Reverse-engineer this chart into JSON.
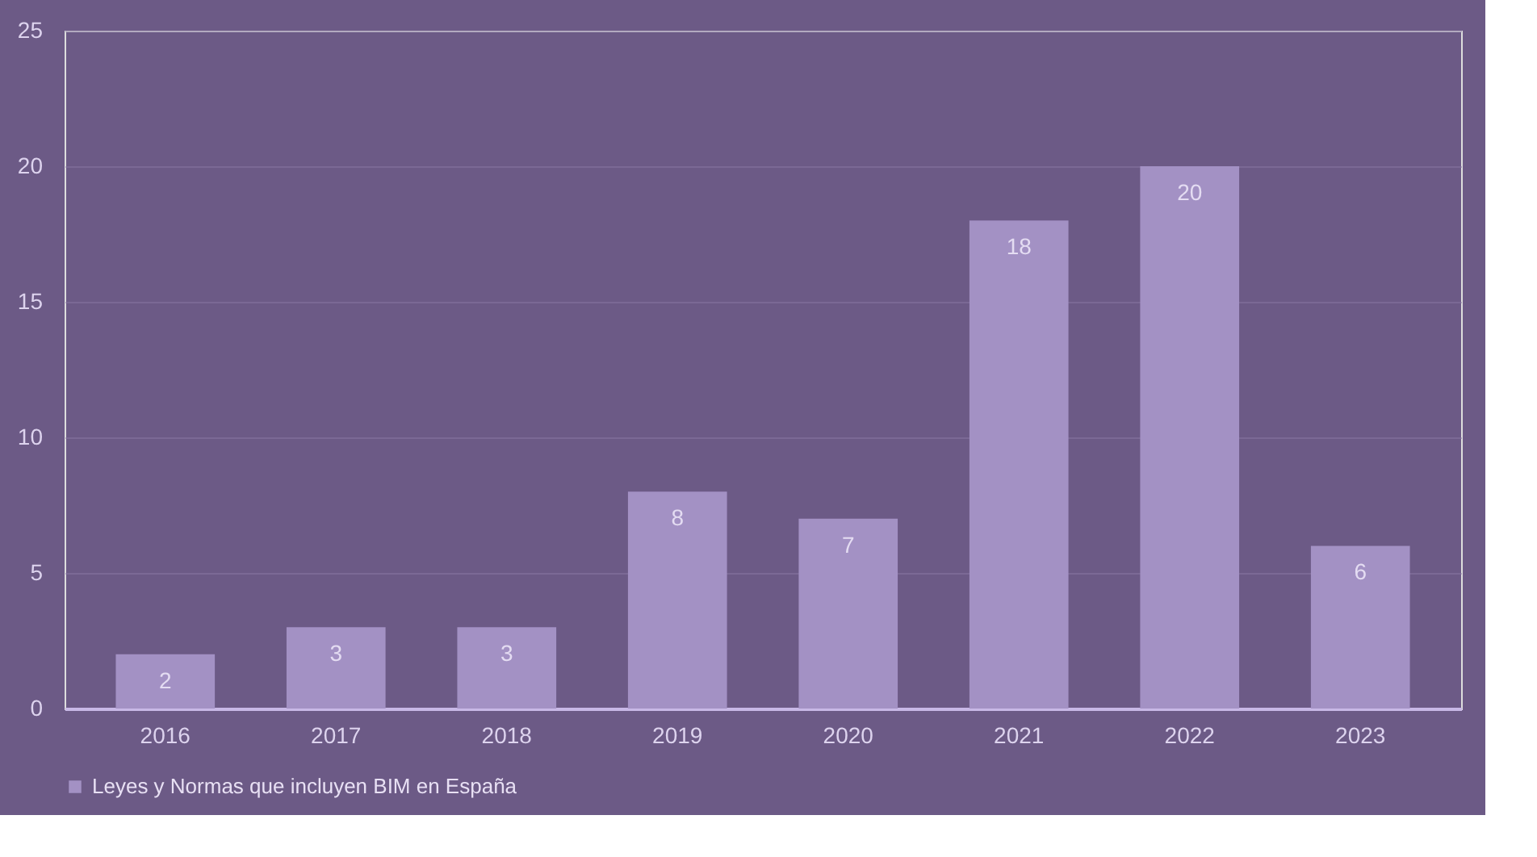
{
  "chart_data": {
    "type": "bar",
    "categories": [
      "2016",
      "2017",
      "2018",
      "2019",
      "2020",
      "2021",
      "2022",
      "2023"
    ],
    "series": [
      {
        "name": "Leyes y Normas que incluyen BIM en España",
        "color": "#a391c4",
        "values": [
          2,
          3,
          3,
          8,
          7,
          18,
          20,
          6
        ]
      }
    ],
    "ylim": [
      0,
      25
    ],
    "yticks": [
      0,
      5,
      10,
      15,
      20,
      25
    ],
    "grid": "y",
    "legend": "bottom",
    "data_labels": true
  }
}
